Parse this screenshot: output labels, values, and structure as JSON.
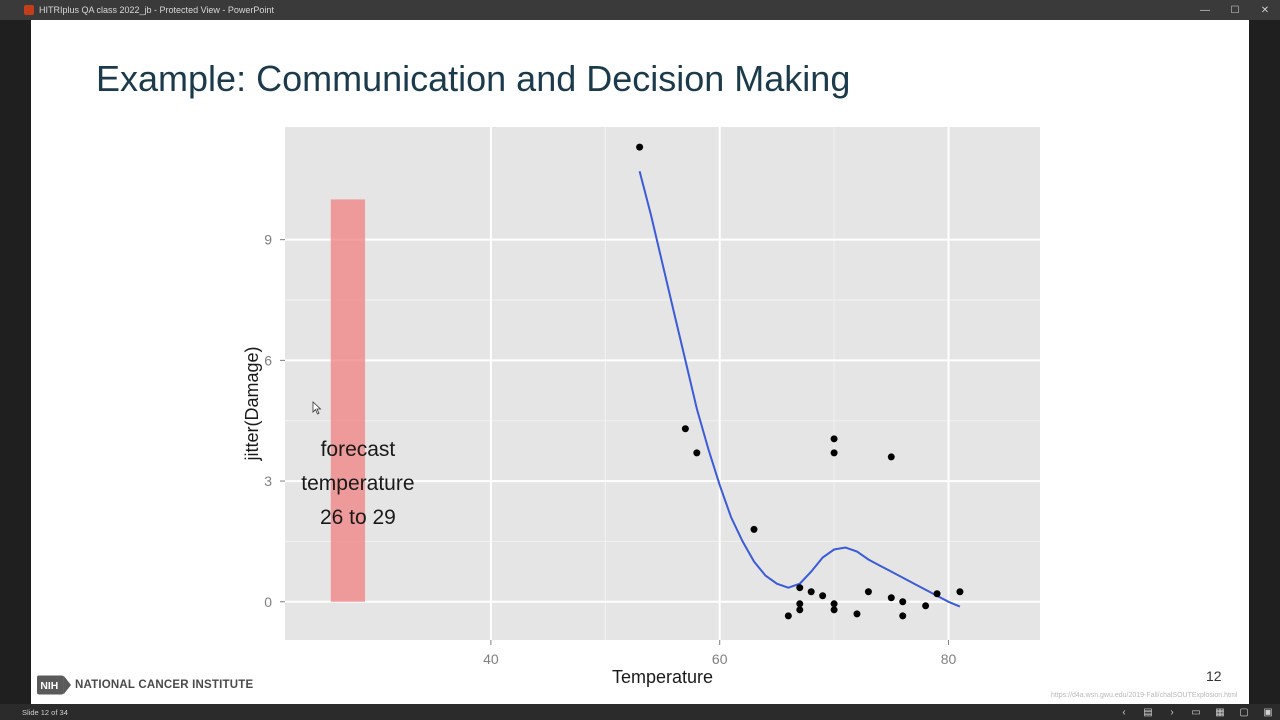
{
  "window": {
    "title": "HITRIplus QA class 2022_jb  -  Protected View  -  PowerPoint",
    "minimize_icon": "minimize-icon",
    "maximize_icon": "maximize-icon",
    "close_icon": "close-icon"
  },
  "slide": {
    "title": "Example: Communication and Decision Making",
    "number": "12",
    "source_url": "https://d4a.wsn.gwu.edu/2019-Fall/chalSOUTExplosion.html",
    "logo_text": "NATIONAL CANCER INSTITUTE",
    "logo_mark": "NIH"
  },
  "statusbar": {
    "slide_indicator": "Slide 12 of 34"
  },
  "chart_data": {
    "type": "scatter",
    "xlabel": "Temperature",
    "ylabel": "jitter(Damage)",
    "xlim": [
      22,
      88
    ],
    "ylim": [
      -0.95,
      11.8
    ],
    "x_ticks": [
      40,
      60,
      80
    ],
    "y_ticks": [
      0,
      3,
      6,
      9
    ],
    "grid": true,
    "points": [
      {
        "x": 53,
        "y": 11.3
      },
      {
        "x": 57,
        "y": 4.3
      },
      {
        "x": 58,
        "y": 3.7
      },
      {
        "x": 63,
        "y": 1.8
      },
      {
        "x": 66,
        "y": -0.35
      },
      {
        "x": 67,
        "y": 0.35
      },
      {
        "x": 67,
        "y": -0.05
      },
      {
        "x": 67,
        "y": -0.2
      },
      {
        "x": 68,
        "y": 0.25
      },
      {
        "x": 69,
        "y": 0.15
      },
      {
        "x": 70,
        "y": 4.05
      },
      {
        "x": 70,
        "y": 3.7
      },
      {
        "x": 70,
        "y": -0.05
      },
      {
        "x": 70,
        "y": -0.2
      },
      {
        "x": 72,
        "y": -0.3
      },
      {
        "x": 73,
        "y": 0.25
      },
      {
        "x": 75,
        "y": 3.6
      },
      {
        "x": 75,
        "y": 0.1
      },
      {
        "x": 76,
        "y": 0.0
      },
      {
        "x": 76,
        "y": -0.35
      },
      {
        "x": 78,
        "y": -0.1
      },
      {
        "x": 79,
        "y": 0.2
      },
      {
        "x": 81,
        "y": 0.25
      }
    ],
    "smooth_line": {
      "color": "#3b5bdb",
      "x": [
        53,
        54,
        55,
        56,
        57,
        58,
        59,
        60,
        61,
        62,
        63,
        64,
        65,
        66,
        67,
        68,
        69,
        70,
        71,
        72,
        73,
        74,
        75,
        76,
        77,
        78,
        79,
        80,
        81
      ],
      "y": [
        10.7,
        9.6,
        8.4,
        7.2,
        6.0,
        4.8,
        3.8,
        2.9,
        2.1,
        1.5,
        1.0,
        0.65,
        0.45,
        0.35,
        0.45,
        0.75,
        1.1,
        1.3,
        1.35,
        1.25,
        1.05,
        0.9,
        0.75,
        0.6,
        0.45,
        0.3,
        0.15,
        0.0,
        -0.12
      ]
    },
    "forecast_band": {
      "x_min": 26,
      "x_max": 29,
      "y_min": 0,
      "y_max": 10,
      "color": "#f08080",
      "label_lines": [
        "forecast",
        "temperature",
        "26 to 29"
      ]
    }
  }
}
